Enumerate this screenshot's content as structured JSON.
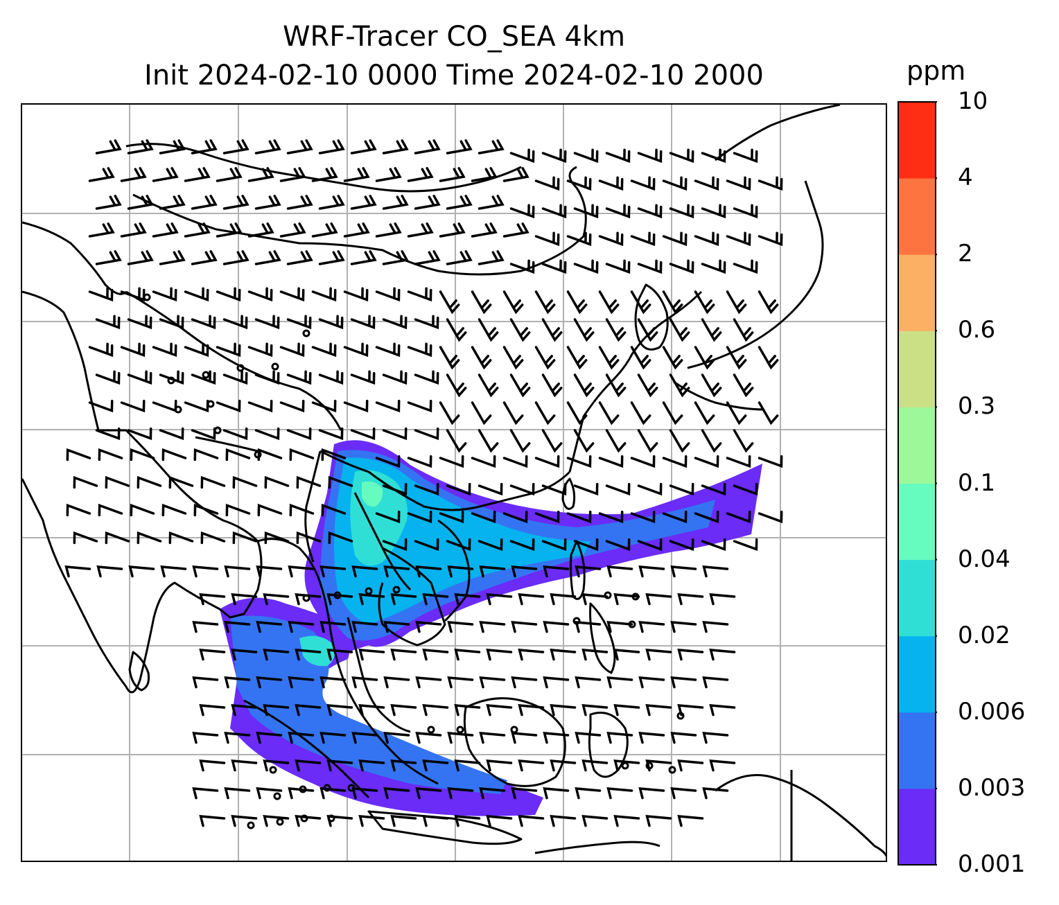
{
  "figure": {
    "title_line1": "WRF-Tracer CO_SEA 4km",
    "title_line2": "Init 2024-02-10 0000 Time 2024-02-10 2000",
    "map": {
      "variable": "CO_SEA tracer concentration",
      "overlay": "wind barbs",
      "features": [
        "coastlines",
        "country borders",
        "lat-lon gridlines"
      ],
      "grid_color": "#b0b0b0"
    },
    "colorbar": {
      "unit": "ppm",
      "levels": [
        "0.001",
        "0.003",
        "0.006",
        "0.02",
        "0.04",
        "0.1",
        "0.3",
        "0.6",
        "2",
        "4",
        "10"
      ],
      "colors": [
        "#6a2cf6",
        "#3474f2",
        "#06b3ee",
        "#2fdfd6",
        "#66fbbf",
        "#9df89a",
        "#cbe084",
        "#fbb064",
        "#fe7440",
        "#fe2e14"
      ]
    }
  }
}
